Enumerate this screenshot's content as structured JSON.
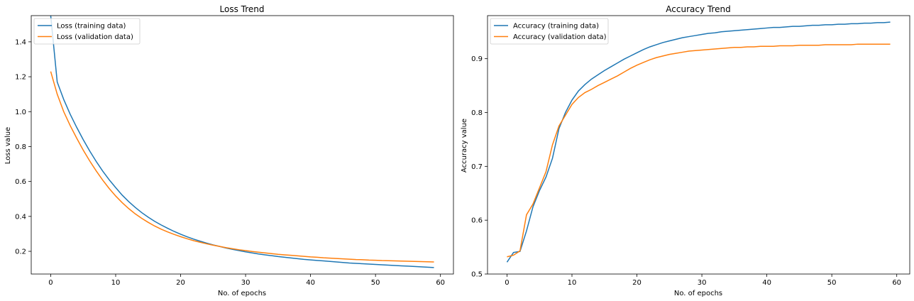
{
  "chart_data": [
    {
      "type": "line",
      "title": "Loss Trend",
      "xlabel": "No. of epochs",
      "ylabel": "Loss value",
      "xlim": [
        -3,
        62
      ],
      "ylim": [
        0.07,
        1.55
      ],
      "xticks": [
        0,
        10,
        20,
        30,
        40,
        50,
        60
      ],
      "yticks": [
        0.2,
        0.4,
        0.6,
        0.8,
        1.0,
        1.2,
        1.4
      ],
      "ytick_decimals": 1,
      "legend": "top-left",
      "grid": false,
      "x": [
        0,
        1,
        2,
        3,
        4,
        5,
        6,
        7,
        8,
        9,
        10,
        11,
        12,
        13,
        14,
        15,
        16,
        17,
        18,
        19,
        20,
        21,
        22,
        23,
        24,
        25,
        26,
        27,
        28,
        29,
        30,
        31,
        32,
        33,
        34,
        35,
        36,
        37,
        38,
        39,
        40,
        41,
        42,
        43,
        44,
        45,
        46,
        47,
        48,
        49,
        50,
        51,
        52,
        53,
        54,
        55,
        56,
        57,
        58,
        59
      ],
      "series": [
        {
          "name": "Loss (training data)",
          "color": "#1f77b4",
          "values": [
            1.55,
            1.17,
            1.07,
            0.985,
            0.91,
            0.84,
            0.775,
            0.715,
            0.66,
            0.61,
            0.565,
            0.522,
            0.485,
            0.452,
            0.422,
            0.396,
            0.372,
            0.351,
            0.332,
            0.314,
            0.298,
            0.283,
            0.27,
            0.258,
            0.247,
            0.237,
            0.228,
            0.219,
            0.211,
            0.204,
            0.197,
            0.191,
            0.185,
            0.18,
            0.175,
            0.17,
            0.166,
            0.162,
            0.158,
            0.154,
            0.151,
            0.148,
            0.145,
            0.142,
            0.139,
            0.136,
            0.133,
            0.131,
            0.129,
            0.127,
            0.125,
            0.123,
            0.121,
            0.119,
            0.117,
            0.115,
            0.113,
            0.111,
            0.109,
            0.107
          ]
        },
        {
          "name": "Loss (validation data)",
          "color": "#ff7f0e",
          "values": [
            1.23,
            1.1,
            1.0,
            0.92,
            0.848,
            0.78,
            0.718,
            0.661,
            0.608,
            0.56,
            0.517,
            0.479,
            0.445,
            0.415,
            0.389,
            0.366,
            0.345,
            0.327,
            0.311,
            0.297,
            0.284,
            0.272,
            0.261,
            0.252,
            0.243,
            0.235,
            0.228,
            0.221,
            0.215,
            0.209,
            0.204,
            0.199,
            0.195,
            0.191,
            0.187,
            0.183,
            0.18,
            0.177,
            0.174,
            0.171,
            0.168,
            0.166,
            0.163,
            0.161,
            0.159,
            0.157,
            0.155,
            0.153,
            0.152,
            0.15,
            0.149,
            0.147,
            0.146,
            0.145,
            0.144,
            0.143,
            0.142,
            0.141,
            0.14,
            0.139
          ]
        }
      ]
    },
    {
      "type": "line",
      "title": "Accuracy Trend",
      "xlabel": "No. of epochs",
      "ylabel": "Accuracy value",
      "xlim": [
        -3,
        62
      ],
      "ylim": [
        0.5,
        0.98
      ],
      "xticks": [
        0,
        10,
        20,
        30,
        40,
        50,
        60
      ],
      "yticks": [
        0.5,
        0.6,
        0.7,
        0.8,
        0.9
      ],
      "ytick_decimals": 1,
      "legend": "top-left",
      "grid": false,
      "x": [
        0,
        1,
        2,
        3,
        4,
        5,
        6,
        7,
        8,
        9,
        10,
        11,
        12,
        13,
        14,
        15,
        16,
        17,
        18,
        19,
        20,
        21,
        22,
        23,
        24,
        25,
        26,
        27,
        28,
        29,
        30,
        31,
        32,
        33,
        34,
        35,
        36,
        37,
        38,
        39,
        40,
        41,
        42,
        43,
        44,
        45,
        46,
        47,
        48,
        49,
        50,
        51,
        52,
        53,
        54,
        55,
        56,
        57,
        58,
        59
      ],
      "series": [
        {
          "name": "Accuracy (training data)",
          "color": "#1f77b4",
          "values": [
            0.522,
            0.54,
            0.542,
            0.58,
            0.625,
            0.655,
            0.68,
            0.715,
            0.77,
            0.8,
            0.823,
            0.84,
            0.852,
            0.862,
            0.87,
            0.878,
            0.885,
            0.892,
            0.899,
            0.905,
            0.911,
            0.917,
            0.922,
            0.926,
            0.93,
            0.933,
            0.936,
            0.939,
            0.941,
            0.943,
            0.945,
            0.947,
            0.948,
            0.95,
            0.951,
            0.952,
            0.953,
            0.954,
            0.955,
            0.956,
            0.957,
            0.958,
            0.958,
            0.959,
            0.96,
            0.96,
            0.961,
            0.962,
            0.962,
            0.963,
            0.963,
            0.964,
            0.964,
            0.965,
            0.965,
            0.966,
            0.966,
            0.967,
            0.967,
            0.968
          ]
        },
        {
          "name": "Accuracy (validation data)",
          "color": "#ff7f0e",
          "values": [
            0.532,
            0.535,
            0.543,
            0.61,
            0.63,
            0.66,
            0.69,
            0.74,
            0.775,
            0.795,
            0.815,
            0.828,
            0.837,
            0.843,
            0.85,
            0.856,
            0.862,
            0.868,
            0.875,
            0.882,
            0.888,
            0.893,
            0.898,
            0.902,
            0.905,
            0.908,
            0.91,
            0.912,
            0.914,
            0.915,
            0.916,
            0.917,
            0.918,
            0.919,
            0.92,
            0.921,
            0.921,
            0.922,
            0.922,
            0.923,
            0.923,
            0.923,
            0.924,
            0.924,
            0.924,
            0.925,
            0.925,
            0.925,
            0.925,
            0.926,
            0.926,
            0.926,
            0.926,
            0.926,
            0.927,
            0.927,
            0.927,
            0.927,
            0.927,
            0.927
          ]
        }
      ]
    }
  ]
}
